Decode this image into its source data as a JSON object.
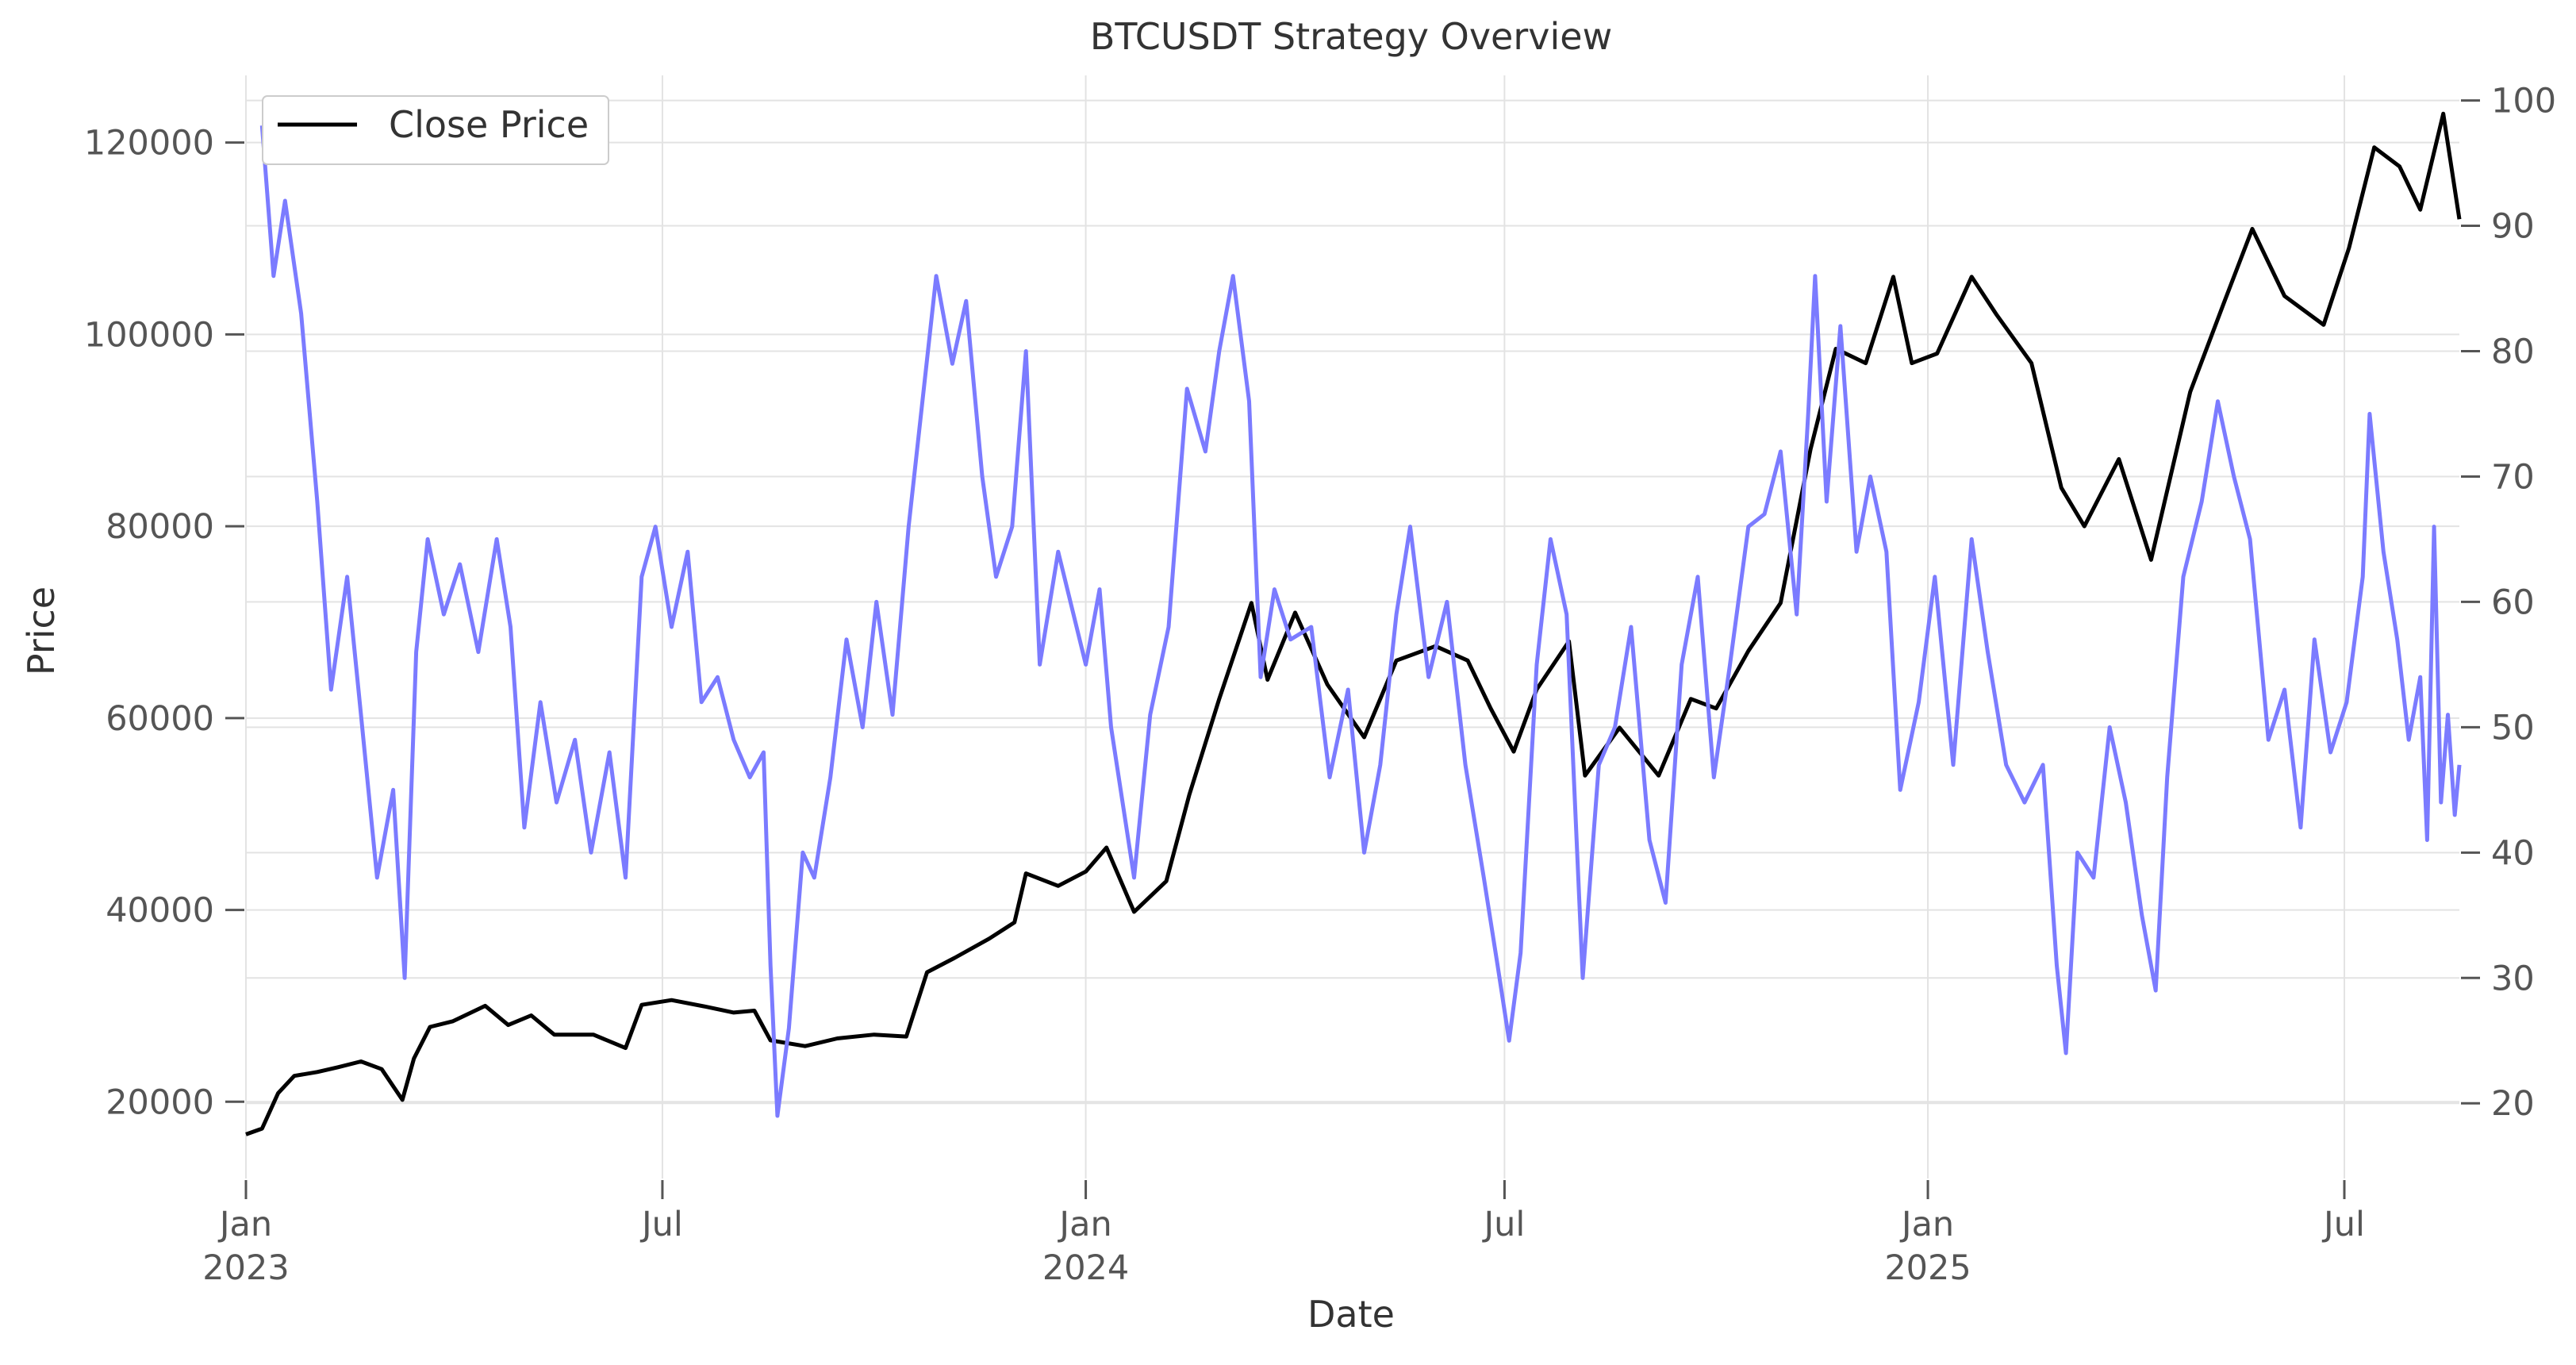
{
  "chart_data": {
    "type": "line",
    "title": "BTCUSDT Strategy Overview",
    "xlabel": "Date",
    "ylabel": "Price",
    "y2label": "",
    "xlim": [
      "2023-01-01",
      "2025-08-20"
    ],
    "ylim": [
      12000,
      127000
    ],
    "y2lim": [
      14,
      102
    ],
    "x_ticks": [
      {
        "date": "2023-01-01",
        "line1": "Jan",
        "line2": "2023"
      },
      {
        "date": "2023-07-01",
        "line1": "Jul",
        "line2": ""
      },
      {
        "date": "2024-01-01",
        "line1": "Jan",
        "line2": "2024"
      },
      {
        "date": "2024-07-01",
        "line1": "Jul",
        "line2": ""
      },
      {
        "date": "2025-01-01",
        "line1": "Jan",
        "line2": "2025"
      },
      {
        "date": "2025-07-01",
        "line1": "Jul",
        "line2": ""
      }
    ],
    "y_ticks": [
      "20000",
      "40000",
      "60000",
      "80000",
      "100000",
      "120000"
    ],
    "y2_ticks": [
      "20",
      "30",
      "40",
      "50",
      "60",
      "70",
      "80",
      "90",
      "100"
    ],
    "grid": true,
    "legend": {
      "position": "top-left",
      "entries": [
        "Close Price"
      ]
    },
    "colors": {
      "close": "#000000",
      "indicator": "#7b7bff",
      "grid": "#e3e3e3",
      "text": "#333333",
      "tick": "#555555"
    },
    "series": [
      {
        "name": "Close Price",
        "axis": "left",
        "points": [
          [
            "2023-01-01",
            16600
          ],
          [
            "2023-01-08",
            17200
          ],
          [
            "2023-01-15",
            20900
          ],
          [
            "2023-01-22",
            22700
          ],
          [
            "2023-02-01",
            23100
          ],
          [
            "2023-02-10",
            23600
          ],
          [
            "2023-02-20",
            24200
          ],
          [
            "2023-03-01",
            23400
          ],
          [
            "2023-03-10",
            20200
          ],
          [
            "2023-03-15",
            24500
          ],
          [
            "2023-03-22",
            27800
          ],
          [
            "2023-04-01",
            28400
          ],
          [
            "2023-04-15",
            30000
          ],
          [
            "2023-04-25",
            28000
          ],
          [
            "2023-05-05",
            29000
          ],
          [
            "2023-05-15",
            27000
          ],
          [
            "2023-06-01",
            27000
          ],
          [
            "2023-06-15",
            25600
          ],
          [
            "2023-06-22",
            30100
          ],
          [
            "2023-07-05",
            30600
          ],
          [
            "2023-07-20",
            29900
          ],
          [
            "2023-08-01",
            29300
          ],
          [
            "2023-08-10",
            29500
          ],
          [
            "2023-08-17",
            26400
          ],
          [
            "2023-09-01",
            25800
          ],
          [
            "2023-09-15",
            26600
          ],
          [
            "2023-10-01",
            27000
          ],
          [
            "2023-10-15",
            26800
          ],
          [
            "2023-10-24",
            33500
          ],
          [
            "2023-11-05",
            35000
          ],
          [
            "2023-11-20",
            37000
          ],
          [
            "2023-12-01",
            38700
          ],
          [
            "2023-12-06",
            43800
          ],
          [
            "2023-12-20",
            42500
          ],
          [
            "2024-01-01",
            44000
          ],
          [
            "2024-01-10",
            46500
          ],
          [
            "2024-01-22",
            39800
          ],
          [
            "2024-02-05",
            43000
          ],
          [
            "2024-02-15",
            52000
          ],
          [
            "2024-02-28",
            62000
          ],
          [
            "2024-03-13",
            72000
          ],
          [
            "2024-03-20",
            64000
          ],
          [
            "2024-04-01",
            71000
          ],
          [
            "2024-04-15",
            63500
          ],
          [
            "2024-05-01",
            58000
          ],
          [
            "2024-05-15",
            66000
          ],
          [
            "2024-06-01",
            67500
          ],
          [
            "2024-06-15",
            66000
          ],
          [
            "2024-06-25",
            61000
          ],
          [
            "2024-07-05",
            56500
          ],
          [
            "2024-07-15",
            63000
          ],
          [
            "2024-07-29",
            68000
          ],
          [
            "2024-08-05",
            54000
          ],
          [
            "2024-08-20",
            59000
          ],
          [
            "2024-09-06",
            54000
          ],
          [
            "2024-09-20",
            62000
          ],
          [
            "2024-10-01",
            61000
          ],
          [
            "2024-10-15",
            67000
          ],
          [
            "2024-10-29",
            72000
          ],
          [
            "2024-11-11",
            88000
          ],
          [
            "2024-11-22",
            98500
          ],
          [
            "2024-12-05",
            97000
          ],
          [
            "2024-12-17",
            106000
          ],
          [
            "2024-12-25",
            97000
          ],
          [
            "2025-01-05",
            98000
          ],
          [
            "2025-01-20",
            106000
          ],
          [
            "2025-01-31",
            102000
          ],
          [
            "2025-02-15",
            97000
          ],
          [
            "2025-02-28",
            84000
          ],
          [
            "2025-03-10",
            80000
          ],
          [
            "2025-03-25",
            87000
          ],
          [
            "2025-04-08",
            76500
          ],
          [
            "2025-04-25",
            94000
          ],
          [
            "2025-05-10",
            103500
          ],
          [
            "2025-05-22",
            111000
          ],
          [
            "2025-06-05",
            104000
          ],
          [
            "2025-06-22",
            101000
          ],
          [
            "2025-07-03",
            109000
          ],
          [
            "2025-07-14",
            119500
          ],
          [
            "2025-07-25",
            117500
          ],
          [
            "2025-08-03",
            113000
          ],
          [
            "2025-08-13",
            123000
          ],
          [
            "2025-08-20",
            112000
          ]
        ]
      },
      {
        "name": "",
        "axis": "right",
        "points": [
          [
            "2023-01-08",
            98
          ],
          [
            "2023-01-13",
            86
          ],
          [
            "2023-01-18",
            92
          ],
          [
            "2023-01-25",
            83
          ],
          [
            "2023-02-01",
            68
          ],
          [
            "2023-02-07",
            53
          ],
          [
            "2023-02-14",
            62
          ],
          [
            "2023-02-20",
            51
          ],
          [
            "2023-02-27",
            38
          ],
          [
            "2023-03-06",
            45
          ],
          [
            "2023-03-11",
            30
          ],
          [
            "2023-03-16",
            56
          ],
          [
            "2023-03-21",
            65
          ],
          [
            "2023-03-28",
            59
          ],
          [
            "2023-04-04",
            63
          ],
          [
            "2023-04-12",
            56
          ],
          [
            "2023-04-20",
            65
          ],
          [
            "2023-04-26",
            58
          ],
          [
            "2023-05-02",
            42
          ],
          [
            "2023-05-09",
            52
          ],
          [
            "2023-05-16",
            44
          ],
          [
            "2023-05-24",
            49
          ],
          [
            "2023-05-31",
            40
          ],
          [
            "2023-06-08",
            48
          ],
          [
            "2023-06-15",
            38
          ],
          [
            "2023-06-22",
            62
          ],
          [
            "2023-06-28",
            66
          ],
          [
            "2023-07-05",
            58
          ],
          [
            "2023-07-12",
            64
          ],
          [
            "2023-07-18",
            52
          ],
          [
            "2023-07-25",
            54
          ],
          [
            "2023-08-01",
            49
          ],
          [
            "2023-08-08",
            46
          ],
          [
            "2023-08-14",
            48
          ],
          [
            "2023-08-17",
            31
          ],
          [
            "2023-08-20",
            19
          ],
          [
            "2023-08-25",
            26
          ],
          [
            "2023-08-31",
            40
          ],
          [
            "2023-09-05",
            38
          ],
          [
            "2023-09-12",
            46
          ],
          [
            "2023-09-19",
            57
          ],
          [
            "2023-09-26",
            50
          ],
          [
            "2023-10-02",
            60
          ],
          [
            "2023-10-09",
            51
          ],
          [
            "2023-10-16",
            66
          ],
          [
            "2023-10-22",
            76
          ],
          [
            "2023-10-28",
            86
          ],
          [
            "2023-11-04",
            79
          ],
          [
            "2023-11-10",
            84
          ],
          [
            "2023-11-17",
            70
          ],
          [
            "2023-11-23",
            62
          ],
          [
            "2023-11-30",
            66
          ],
          [
            "2023-12-06",
            80
          ],
          [
            "2023-12-12",
            55
          ],
          [
            "2023-12-20",
            64
          ],
          [
            "2024-01-01",
            55
          ],
          [
            "2024-01-07",
            61
          ],
          [
            "2024-01-12",
            50
          ],
          [
            "2024-01-22",
            38
          ],
          [
            "2024-01-29",
            51
          ],
          [
            "2024-02-06",
            58
          ],
          [
            "2024-02-14",
            77
          ],
          [
            "2024-02-22",
            72
          ],
          [
            "2024-02-28",
            80
          ],
          [
            "2024-03-05",
            86
          ],
          [
            "2024-03-12",
            76
          ],
          [
            "2024-03-17",
            54
          ],
          [
            "2024-03-23",
            61
          ],
          [
            "2024-03-30",
            57
          ],
          [
            "2024-04-08",
            58
          ],
          [
            "2024-04-16",
            46
          ],
          [
            "2024-04-24",
            53
          ],
          [
            "2024-05-01",
            40
          ],
          [
            "2024-05-08",
            47
          ],
          [
            "2024-05-15",
            59
          ],
          [
            "2024-05-21",
            66
          ],
          [
            "2024-05-29",
            54
          ],
          [
            "2024-06-06",
            60
          ],
          [
            "2024-06-14",
            47
          ],
          [
            "2024-06-22",
            38
          ],
          [
            "2024-06-28",
            31
          ],
          [
            "2024-07-03",
            25
          ],
          [
            "2024-07-08",
            32
          ],
          [
            "2024-07-15",
            55
          ],
          [
            "2024-07-21",
            65
          ],
          [
            "2024-07-28",
            59
          ],
          [
            "2024-08-04",
            30
          ],
          [
            "2024-08-11",
            47
          ],
          [
            "2024-08-18",
            50
          ],
          [
            "2024-08-25",
            58
          ],
          [
            "2024-09-02",
            41
          ],
          [
            "2024-09-09",
            36
          ],
          [
            "2024-09-16",
            55
          ],
          [
            "2024-09-23",
            62
          ],
          [
            "2024-09-30",
            46
          ],
          [
            "2024-10-07",
            55
          ],
          [
            "2024-10-15",
            66
          ],
          [
            "2024-10-22",
            67
          ],
          [
            "2024-10-29",
            72
          ],
          [
            "2024-11-05",
            59
          ],
          [
            "2024-11-10",
            75
          ],
          [
            "2024-11-13",
            86
          ],
          [
            "2024-11-18",
            68
          ],
          [
            "2024-11-24",
            82
          ],
          [
            "2024-12-01",
            64
          ],
          [
            "2024-12-07",
            70
          ],
          [
            "2024-12-14",
            64
          ],
          [
            "2024-12-20",
            45
          ],
          [
            "2024-12-28",
            52
          ],
          [
            "2025-01-04",
            62
          ],
          [
            "2025-01-12",
            47
          ],
          [
            "2025-01-20",
            65
          ],
          [
            "2025-01-27",
            56
          ],
          [
            "2025-02-04",
            47
          ],
          [
            "2025-02-12",
            44
          ],
          [
            "2025-02-20",
            47
          ],
          [
            "2025-02-26",
            31
          ],
          [
            "2025-03-02",
            24
          ],
          [
            "2025-03-07",
            40
          ],
          [
            "2025-03-14",
            38
          ],
          [
            "2025-03-21",
            50
          ],
          [
            "2025-03-28",
            44
          ],
          [
            "2025-04-04",
            35
          ],
          [
            "2025-04-10",
            29
          ],
          [
            "2025-04-15",
            46
          ],
          [
            "2025-04-22",
            62
          ],
          [
            "2025-04-30",
            68
          ],
          [
            "2025-05-07",
            76
          ],
          [
            "2025-05-14",
            70
          ],
          [
            "2025-05-21",
            65
          ],
          [
            "2025-05-29",
            49
          ],
          [
            "2025-06-05",
            53
          ],
          [
            "2025-06-12",
            42
          ],
          [
            "2025-06-18",
            57
          ],
          [
            "2025-06-25",
            48
          ],
          [
            "2025-07-02",
            52
          ],
          [
            "2025-07-09",
            62
          ],
          [
            "2025-07-12",
            75
          ],
          [
            "2025-07-18",
            64
          ],
          [
            "2025-07-24",
            57
          ],
          [
            "2025-07-29",
            49
          ],
          [
            "2025-08-03",
            54
          ],
          [
            "2025-08-06",
            41
          ],
          [
            "2025-08-09",
            66
          ],
          [
            "2025-08-12",
            44
          ],
          [
            "2025-08-15",
            51
          ],
          [
            "2025-08-18",
            43
          ],
          [
            "2025-08-20",
            47
          ]
        ]
      }
    ]
  }
}
